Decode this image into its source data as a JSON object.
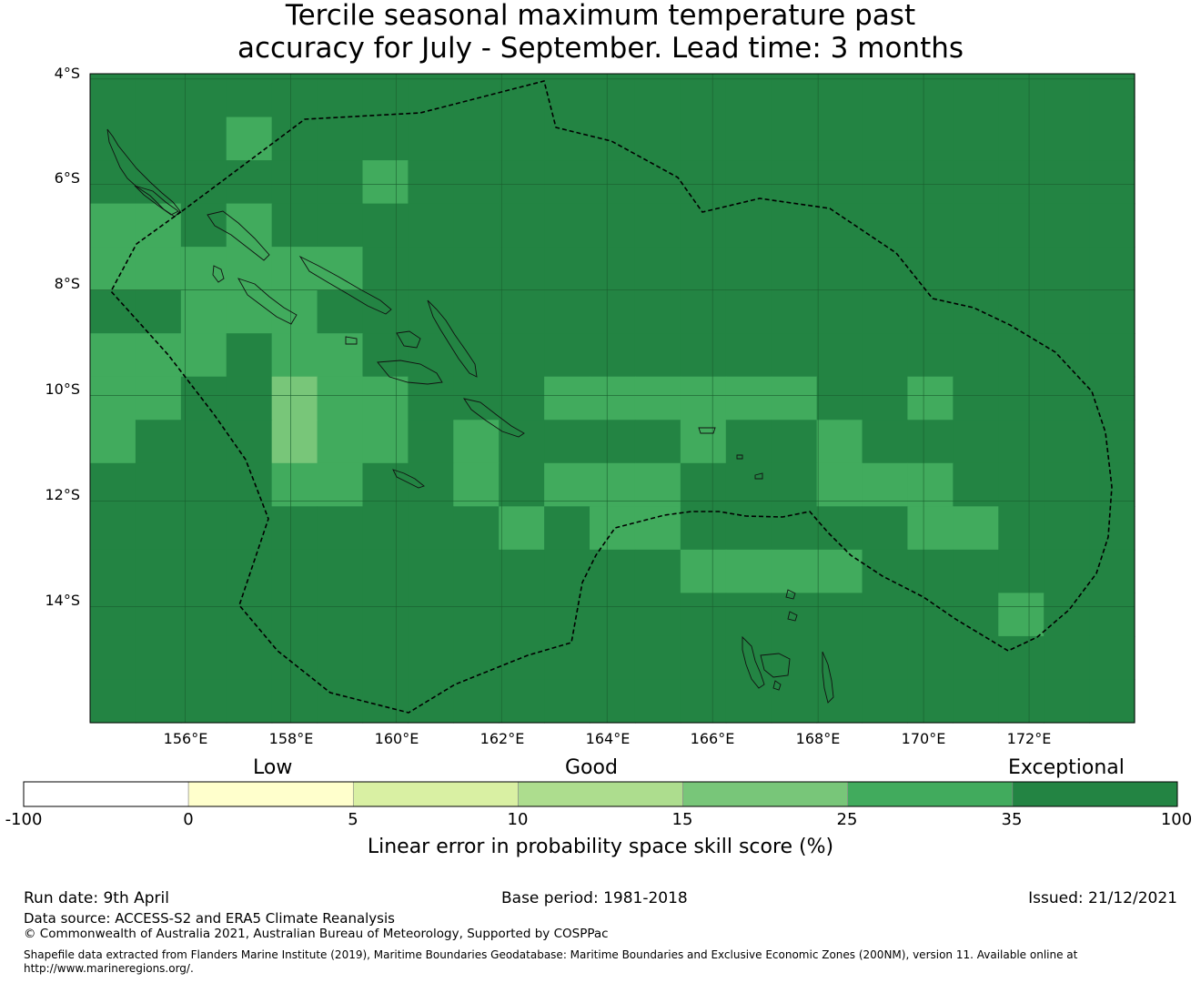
{
  "title_line1": "Tercile seasonal maximum temperature past",
  "title_line2": "accuracy for July - September. Lead time: 3 months",
  "lat_labels": [
    "4°S",
    "6°S",
    "8°S",
    "10°S",
    "12°S",
    "14°S"
  ],
  "lon_labels": [
    "156°E",
    "158°E",
    "160°E",
    "162°E",
    "164°E",
    "166°E",
    "168°E",
    "170°E",
    "172°E"
  ],
  "colorbar": {
    "tiers": [
      "Low",
      "Good",
      "Exceptional"
    ],
    "ticks": [
      "-100",
      "0",
      "5",
      "10",
      "15",
      "25",
      "35",
      "100"
    ],
    "colors": [
      "#ffffff",
      "#ffffcc",
      "#d9f0a3",
      "#addd8e",
      "#78c679",
      "#41ab5d",
      "#238443"
    ],
    "label": "Linear error in probability space skill score (%)"
  },
  "footer": {
    "run_date": "Run date: 9th April",
    "base_period": "Base period: 1981-2018",
    "issued": "Issued: 21/12/2021",
    "data_source": "Data source: ACCESS-S2 and ERA5 Climate Reanalysis",
    "copyright": "© Commonwealth of Australia 2021, Australian Bureau of Meteorology, Supported by COSPPac",
    "shapefile_line1": "Shapefile data extracted from Flanders Marine Institute (2019), Maritime Boundaries Geodatabase: Maritime Boundaries and Exclusive Economic Zones (200NM), version 11. Available online at",
    "shapefile_line2": "http://www.marineregions.org/."
  },
  "map": {
    "lon_range": [
      154.2,
      174.0
    ],
    "lat_range": [
      -3.9,
      -16.2
    ],
    "cell_lon_deg": 0.83,
    "cell_lat_deg": 0.56,
    "category_colors": [
      "#ffffff",
      "#ffffcc",
      "#d9f0a3",
      "#addd8e",
      "#78c679",
      "#41ab5d",
      "#238443"
    ],
    "grid_categories": [
      "66666666666666666666666",
      "66656666666666666666666",
      "66666656666666666666666",
      "55656666666666666666666",
      "55555566666666666666666",
      "66555666666666666666666",
      "55565566666666666666666",
      "55664556665555556656666",
      "56664556566665665666666",
      "66665566565556665556666",
      "66666666656556666655666",
      "66666666666665555666666",
      "66666666666666666666566",
      "66666666666666666666666",
      "66666666666666666666666"
    ]
  }
}
